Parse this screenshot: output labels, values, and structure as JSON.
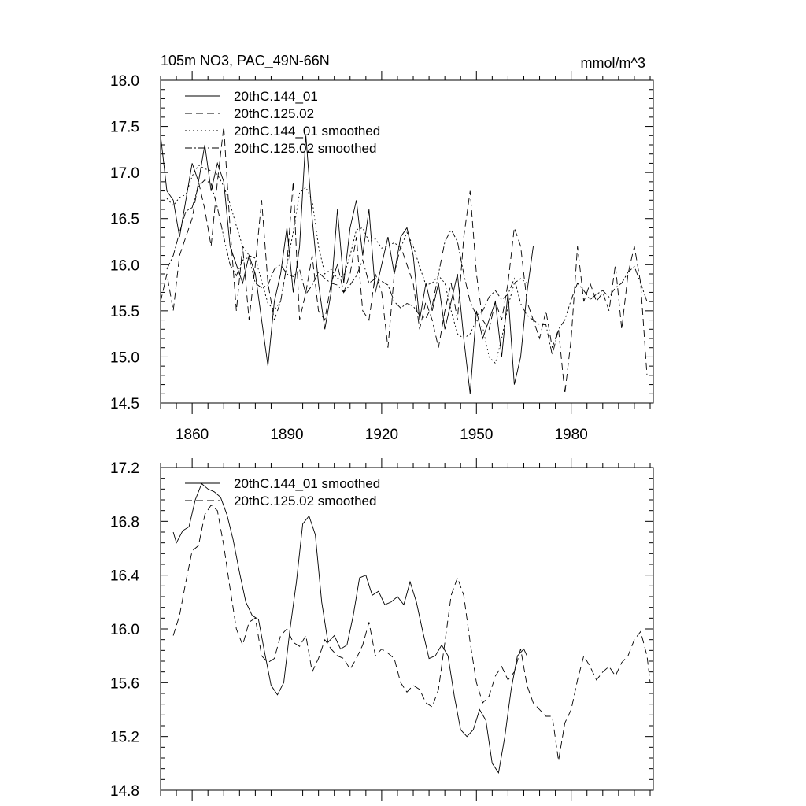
{
  "chart_data": [
    {
      "type": "line",
      "title": "105m NO3, PAC_49N-66N",
      "units_label": "mmol/m^3",
      "xlim": [
        1850,
        2006
      ],
      "ylim": [
        14.5,
        18.0
      ],
      "yticks": [
        14.5,
        15.0,
        15.5,
        16.0,
        16.5,
        17.0,
        17.5,
        18.0
      ],
      "ytick_labels": [
        "14.5",
        "15.0",
        "15.5",
        "16.0",
        "16.5",
        "17.0",
        "17.5",
        "18.0"
      ],
      "xticks": [
        1860,
        1890,
        1920,
        1950,
        1980
      ],
      "xtick_labels": [
        "1860",
        "1890",
        "1920",
        "1950",
        "1980"
      ],
      "legend": [
        "20thC.144_01",
        "20thC.125.02",
        "20thC.144_01 smoothed",
        "20thC.125.02 smoothed"
      ],
      "legend_position": "top-left",
      "series": [
        {
          "name": "20thC.144_01",
          "style": "solid",
          "x": [
            1850,
            1852,
            1854,
            1856,
            1858,
            1860,
            1862,
            1864,
            1866,
            1868,
            1870,
            1872,
            1874,
            1876,
            1878,
            1880,
            1882,
            1884,
            1886,
            1888,
            1890,
            1892,
            1894,
            1896,
            1898,
            1900,
            1902,
            1904,
            1906,
            1908,
            1910,
            1912,
            1914,
            1916,
            1918,
            1920,
            1922,
            1924,
            1926,
            1928,
            1930,
            1932,
            1934,
            1936,
            1938,
            1940,
            1942,
            1944,
            1946,
            1948,
            1950,
            1952,
            1954,
            1956,
            1958,
            1960,
            1962,
            1964,
            1966,
            1968
          ],
          "values": [
            17.4,
            16.8,
            16.7,
            16.3,
            16.7,
            17.1,
            16.9,
            17.3,
            16.8,
            17.1,
            16.9,
            16.2,
            16.0,
            15.8,
            16.1,
            15.9,
            15.4,
            14.9,
            15.6,
            15.9,
            16.4,
            15.7,
            16.2,
            17.4,
            16.5,
            15.8,
            15.3,
            15.7,
            16.6,
            15.8,
            16.4,
            16.7,
            16.1,
            16.6,
            15.7,
            16.0,
            16.3,
            15.9,
            16.3,
            16.4,
            16.1,
            15.4,
            15.8,
            15.5,
            15.8,
            15.3,
            15.6,
            15.9,
            15.2,
            14.6,
            15.5,
            15.2,
            15.4,
            15.6,
            15.0,
            15.7,
            14.7,
            15.0,
            15.7,
            16.2
          ]
        },
        {
          "name": "20thC.125.02",
          "style": "dashed",
          "x": [
            1850,
            1852,
            1854,
            1856,
            1858,
            1860,
            1862,
            1864,
            1866,
            1868,
            1870,
            1872,
            1874,
            1876,
            1878,
            1880,
            1882,
            1884,
            1886,
            1888,
            1890,
            1892,
            1894,
            1896,
            1898,
            1900,
            1902,
            1904,
            1906,
            1908,
            1910,
            1912,
            1914,
            1916,
            1918,
            1920,
            1922,
            1924,
            1926,
            1928,
            1930,
            1932,
            1934,
            1936,
            1938,
            1940,
            1942,
            1944,
            1946,
            1948,
            1950,
            1952,
            1954,
            1956,
            1958,
            1960,
            1962,
            1964,
            1966,
            1968,
            1970,
            1972,
            1974,
            1976,
            1978,
            1980,
            1982,
            1984,
            1986,
            1988,
            1990,
            1992,
            1994,
            1996,
            1998,
            2000,
            2002,
            2004
          ],
          "values": [
            15.6,
            15.9,
            15.5,
            16.1,
            16.3,
            16.5,
            16.9,
            16.6,
            16.2,
            16.9,
            17.5,
            16.4,
            15.5,
            16.2,
            15.4,
            16.0,
            16.7,
            15.8,
            15.4,
            15.6,
            16.0,
            16.9,
            15.4,
            15.7,
            16.1,
            15.5,
            15.4,
            15.8,
            16.0,
            15.7,
            15.9,
            16.3,
            15.5,
            15.4,
            15.9,
            15.7,
            15.1,
            15.9,
            16.2,
            16.0,
            15.8,
            15.3,
            15.6,
            15.4,
            15.1,
            15.5,
            15.8,
            15.4,
            16.3,
            16.8,
            15.9,
            15.4,
            15.3,
            15.6,
            15.4,
            15.8,
            16.4,
            16.2,
            15.6,
            15.4,
            15.2,
            15.5,
            15.1,
            15.3,
            14.6,
            15.2,
            16.2,
            15.6,
            15.8,
            15.6,
            15.7,
            15.5,
            16.0,
            15.3,
            15.9,
            16.2,
            15.8,
            14.8
          ]
        },
        {
          "name": "20thC.144_01 smoothed",
          "style": "dotted",
          "x": [
            1852,
            1854,
            1856,
            1858,
            1860,
            1862,
            1864,
            1866,
            1868,
            1870,
            1872,
            1874,
            1876,
            1878,
            1880,
            1882,
            1884,
            1886,
            1888,
            1890,
            1892,
            1894,
            1896,
            1898,
            1900,
            1902,
            1904,
            1906,
            1908,
            1910,
            1912,
            1914,
            1916,
            1918,
            1920,
            1922,
            1924,
            1926,
            1928,
            1930,
            1932,
            1934,
            1936,
            1938,
            1940,
            1942,
            1944,
            1946,
            1948,
            1950,
            1952,
            1954,
            1956,
            1958,
            1960,
            1962,
            1964,
            1966
          ],
          "values": [
            16.72,
            16.64,
            16.73,
            16.76,
            16.96,
            17.08,
            17.04,
            17.02,
            16.98,
            16.85,
            16.66,
            16.42,
            16.2,
            16.1,
            16.07,
            15.82,
            15.58,
            15.51,
            15.6,
            16.0,
            16.35,
            16.78,
            16.84,
            16.7,
            16.2,
            15.9,
            15.95,
            15.85,
            15.88,
            16.1,
            16.38,
            16.4,
            16.25,
            16.28,
            16.18,
            16.2,
            16.24,
            16.18,
            16.35,
            16.2,
            15.98,
            15.78,
            15.8,
            15.88,
            15.8,
            15.5,
            15.25,
            15.2,
            15.25,
            15.4,
            15.32,
            15.0,
            14.93,
            15.2,
            15.55,
            15.8,
            15.85,
            15.8
          ]
        },
        {
          "name": "20thC.125.02 smoothed",
          "style": "dashdot",
          "x": [
            1852,
            1854,
            1856,
            1858,
            1860,
            1862,
            1864,
            1866,
            1868,
            1870,
            1872,
            1874,
            1876,
            1878,
            1880,
            1882,
            1884,
            1886,
            1888,
            1890,
            1892,
            1894,
            1896,
            1898,
            1900,
            1902,
            1904,
            1906,
            1908,
            1910,
            1912,
            1914,
            1916,
            1918,
            1920,
            1922,
            1924,
            1926,
            1928,
            1930,
            1932,
            1934,
            1936,
            1938,
            1940,
            1942,
            1944,
            1946,
            1948,
            1950,
            1952,
            1954,
            1956,
            1958,
            1960,
            1962,
            1964,
            1966,
            1968,
            1970,
            1972,
            1974,
            1976,
            1978,
            1980,
            1982,
            1984,
            1986,
            1988,
            1990,
            1992,
            1994,
            1996,
            1998,
            2000,
            2002,
            2004
          ],
          "values": [
            15.95,
            16.1,
            16.35,
            16.58,
            16.62,
            16.85,
            16.92,
            16.88,
            16.62,
            16.3,
            16.0,
            15.88,
            16.05,
            16.08,
            15.8,
            15.75,
            15.78,
            15.95,
            16.0,
            15.9,
            15.87,
            15.95,
            15.68,
            15.78,
            15.92,
            15.85,
            15.8,
            15.78,
            15.7,
            15.78,
            15.88,
            16.05,
            15.8,
            15.85,
            15.82,
            15.78,
            15.6,
            15.53,
            15.58,
            15.55,
            15.45,
            15.42,
            15.55,
            15.9,
            16.25,
            16.38,
            16.25,
            15.9,
            15.6,
            15.45,
            15.5,
            15.65,
            15.72,
            15.62,
            15.68,
            15.85,
            15.58,
            15.45,
            15.4,
            15.35,
            15.35,
            15.02,
            15.3,
            15.4,
            15.62,
            15.8,
            15.72,
            15.62,
            15.68,
            15.72,
            15.65,
            15.75,
            15.8,
            15.92,
            15.98,
            15.8,
            15.6
          ]
        }
      ]
    },
    {
      "type": "line",
      "title": "",
      "xlim": [
        1850,
        2006
      ],
      "ylim": [
        14.8,
        17.2
      ],
      "yticks": [
        14.8,
        15.2,
        15.6,
        16.0,
        16.4,
        16.8,
        17.2
      ],
      "ytick_labels": [
        "14.8",
        "15.2",
        "15.6",
        "16.0",
        "16.4",
        "16.8",
        "17.2"
      ],
      "xticks": [
        1860,
        1890,
        1920,
        1950,
        1980
      ],
      "legend": [
        "20thC.144_01 smoothed",
        "20thC.125.02 smoothed"
      ],
      "legend_position": "top-left",
      "series": [
        {
          "name": "20thC.144_01 smoothed",
          "style": "solid",
          "x": [
            1854,
            1855,
            1857,
            1859,
            1861,
            1863,
            1865,
            1867,
            1869,
            1871,
            1873,
            1875,
            1877,
            1879,
            1881,
            1883,
            1885,
            1887,
            1889,
            1891,
            1893,
            1895,
            1897,
            1899,
            1901,
            1903,
            1905,
            1907,
            1909,
            1911,
            1913,
            1915,
            1917,
            1919,
            1921,
            1923,
            1925,
            1927,
            1929,
            1931,
            1933,
            1935,
            1937,
            1939,
            1941,
            1943,
            1945,
            1947,
            1949,
            1951,
            1953,
            1955,
            1957,
            1959,
            1961,
            1963,
            1965,
            1966
          ],
          "values": [
            16.72,
            16.64,
            16.73,
            16.76,
            16.96,
            17.08,
            17.04,
            17.02,
            16.98,
            16.85,
            16.66,
            16.42,
            16.2,
            16.1,
            16.07,
            15.82,
            15.58,
            15.51,
            15.6,
            16.0,
            16.35,
            16.78,
            16.84,
            16.7,
            16.2,
            15.9,
            15.95,
            15.85,
            15.88,
            16.1,
            16.38,
            16.4,
            16.25,
            16.28,
            16.18,
            16.2,
            16.24,
            16.18,
            16.35,
            16.2,
            15.98,
            15.78,
            15.8,
            15.88,
            15.8,
            15.5,
            15.25,
            15.2,
            15.25,
            15.4,
            15.32,
            15.0,
            14.93,
            15.2,
            15.55,
            15.8,
            15.85,
            15.8
          ]
        },
        {
          "name": "20thC.125.02 smoothed",
          "style": "dashed",
          "x": [
            1854,
            1856,
            1858,
            1860,
            1862,
            1864,
            1866,
            1868,
            1870,
            1872,
            1874,
            1876,
            1878,
            1880,
            1882,
            1884,
            1886,
            1888,
            1890,
            1892,
            1894,
            1896,
            1898,
            1900,
            1902,
            1904,
            1906,
            1908,
            1910,
            1912,
            1914,
            1916,
            1918,
            1920,
            1922,
            1924,
            1926,
            1928,
            1930,
            1932,
            1934,
            1936,
            1938,
            1940,
            1942,
            1944,
            1946,
            1948,
            1950,
            1952,
            1954,
            1956,
            1958,
            1960,
            1962,
            1964,
            1966,
            1968,
            1970,
            1972,
            1974,
            1976,
            1978,
            1980,
            1982,
            1984,
            1986,
            1988,
            1990,
            1992,
            1994,
            1996,
            1998,
            2000,
            2002,
            2004,
            2005
          ],
          "values": [
            15.95,
            16.1,
            16.35,
            16.58,
            16.62,
            16.85,
            16.92,
            16.88,
            16.62,
            16.3,
            16.0,
            15.88,
            16.05,
            16.08,
            15.8,
            15.75,
            15.78,
            15.95,
            16.0,
            15.9,
            15.87,
            15.95,
            15.68,
            15.78,
            15.92,
            15.85,
            15.8,
            15.78,
            15.7,
            15.78,
            15.88,
            16.05,
            15.8,
            15.85,
            15.82,
            15.78,
            15.6,
            15.53,
            15.58,
            15.55,
            15.45,
            15.42,
            15.55,
            15.9,
            16.25,
            16.38,
            16.25,
            15.9,
            15.6,
            15.45,
            15.5,
            15.65,
            15.72,
            15.62,
            15.68,
            15.85,
            15.58,
            15.45,
            15.4,
            15.35,
            15.35,
            15.02,
            15.3,
            15.4,
            15.62,
            15.8,
            15.72,
            15.62,
            15.68,
            15.72,
            15.65,
            15.75,
            15.8,
            15.92,
            15.98,
            15.8,
            15.6
          ]
        }
      ]
    }
  ]
}
